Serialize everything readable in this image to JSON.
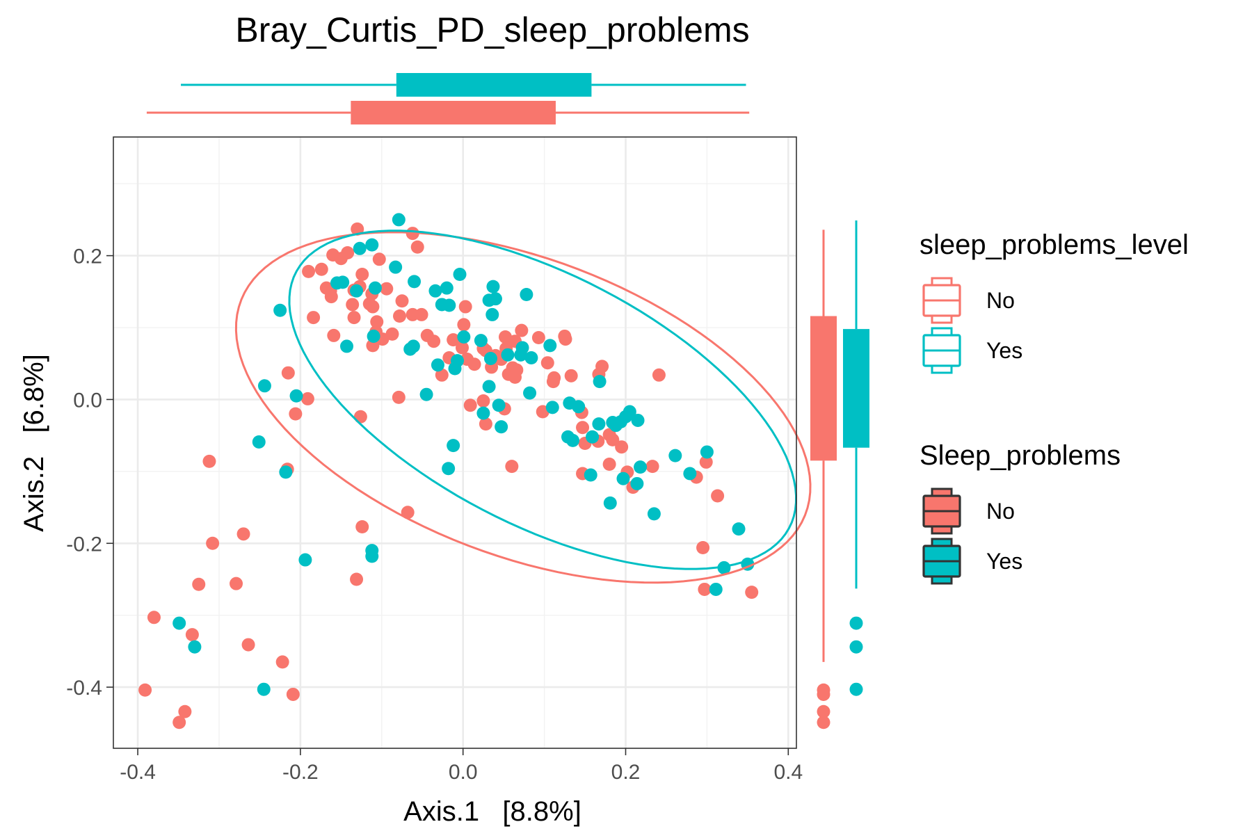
{
  "chart_data": {
    "type": "scatter",
    "title": "Bray_Curtis_PD_sleep_problems",
    "xlabel": "Axis.1   [8.8%]",
    "ylabel": "Axis.2   [6.8%]",
    "xlim": [
      -0.43,
      0.41
    ],
    "ylim": [
      -0.485,
      0.365
    ],
    "grid": true,
    "x_ticks": [
      -0.4,
      -0.2,
      0.0,
      0.2,
      0.4
    ],
    "x_tick_labels": [
      "-0.4",
      "-0.2",
      "0.0",
      "0.2",
      "0.4"
    ],
    "y_ticks": [
      -0.4,
      -0.2,
      0.0,
      0.2
    ],
    "y_tick_labels": [
      "-0.4",
      "-0.2",
      "0.0",
      "0.2"
    ],
    "colors": {
      "No": "#F8766D",
      "Yes": "#00BFC4"
    },
    "legend_position": "right",
    "legends": [
      {
        "title": "sleep_problems_level",
        "style": "outline",
        "items": [
          "No",
          "Yes"
        ]
      },
      {
        "title": "Sleep_problems",
        "style": "filled",
        "items": [
          "No",
          "Yes"
        ]
      }
    ],
    "marginal_boxplots": {
      "x": [
        {
          "group": "Yes",
          "whisker_low": -0.347,
          "q1": -0.082,
          "q3": 0.158,
          "whisker_high": 0.348
        },
        {
          "group": "No",
          "whisker_low": -0.389,
          "q1": -0.138,
          "q3": 0.114,
          "whisker_high": 0.352
        }
      ],
      "y": [
        {
          "group": "No",
          "whisker_low": -0.365,
          "q1": -0.085,
          "q3": 0.116,
          "whisker_high": 0.236,
          "outliers": [
            -0.404,
            -0.41,
            -0.434,
            -0.449
          ]
        },
        {
          "group": "Yes",
          "whisker_low": -0.263,
          "q1": -0.067,
          "q3": 0.098,
          "whisker_high": 0.249,
          "outliers": [
            -0.311,
            -0.344,
            -0.403
          ]
        }
      ]
    },
    "ellipses": [
      {
        "group": "No",
        "center": [
          0.074,
          -0.011
        ],
        "semi_major": 0.378,
        "semi_minor": 0.203,
        "angle_deg": -25
      },
      {
        "group": "Yes",
        "center": [
          0.098,
          -0.0005
        ],
        "semi_major": 0.352,
        "semi_minor": 0.169,
        "angle_deg": -32
      }
    ],
    "series": [
      {
        "name": "No",
        "points": [
          [
            -0.13,
            0.237
          ],
          [
            -0.062,
            0.231
          ],
          [
            -0.056,
            0.212
          ],
          [
            -0.16,
            0.201
          ],
          [
            -0.142,
            0.204
          ],
          [
            -0.15,
            0.196
          ],
          [
            -0.103,
            0.195
          ],
          [
            -0.19,
            0.178
          ],
          [
            -0.174,
            0.181
          ],
          [
            -0.124,
            0.174
          ],
          [
            -0.168,
            0.155
          ],
          [
            -0.163,
            0.151
          ],
          [
            -0.134,
            0.152
          ],
          [
            -0.127,
            0.157
          ],
          [
            -0.094,
            0.154
          ],
          [
            -0.075,
            0.137
          ],
          [
            -0.112,
            0.147
          ],
          [
            -0.162,
            0.143
          ],
          [
            -0.136,
            0.132
          ],
          [
            -0.115,
            0.133
          ],
          [
            -0.111,
            0.129
          ],
          [
            -0.184,
            0.114
          ],
          [
            -0.134,
            0.114
          ],
          [
            -0.106,
            0.108
          ],
          [
            -0.078,
            0.116
          ],
          [
            -0.062,
            0.118
          ],
          [
            -0.051,
            0.118
          ],
          [
            -0.159,
            0.089
          ],
          [
            -0.107,
            0.094
          ],
          [
            -0.099,
            0.084
          ],
          [
            -0.111,
            0.075
          ],
          [
            -0.087,
            0.091
          ],
          [
            -0.044,
            0.089
          ],
          [
            -0.036,
            0.081
          ],
          [
            -0.012,
            0.083
          ],
          [
            0.003,
            0.129
          ],
          [
            0.001,
            0.104
          ],
          [
            0.072,
            0.096
          ],
          [
            -0.001,
            0.072
          ],
          [
            0.025,
            0.071
          ],
          [
            0.052,
            0.087
          ],
          [
            0.064,
            0.081
          ],
          [
            0.093,
            0.086
          ],
          [
            0.125,
            0.088
          ],
          [
            0.126,
            0.084
          ],
          [
            0.053,
            0.071
          ],
          [
            0.04,
            0.061
          ],
          [
            0.047,
            0.056
          ],
          [
            0.005,
            0.056
          ],
          [
            0.028,
            0.068
          ],
          [
            0.035,
            0.045
          ],
          [
            0.104,
            0.051
          ],
          [
            0.061,
            0.044
          ],
          [
            0.171,
            0.046
          ],
          [
            0.056,
            0.035
          ],
          [
            0.064,
            0.031
          ],
          [
            0.066,
            0.041
          ],
          [
            0.112,
            0.03
          ],
          [
            0.133,
            0.033
          ],
          [
            0.167,
            0.035
          ],
          [
            0.111,
            0.025
          ],
          [
            0.241,
            0.034
          ],
          [
            0.014,
            0.049
          ],
          [
            -0.017,
            0.058
          ],
          [
            -0.026,
            0.034
          ],
          [
            -0.215,
            0.037
          ],
          [
            -0.079,
            0.003
          ],
          [
            -0.191,
            0.001
          ],
          [
            -0.206,
            -0.02
          ],
          [
            -0.126,
            -0.024
          ],
          [
            0.009,
            -0.008
          ],
          [
            0.025,
            -0.002
          ],
          [
            0.051,
            -0.013
          ],
          [
            0.098,
            -0.017
          ],
          [
            0.028,
            -0.034
          ],
          [
            0.146,
            -0.018
          ],
          [
            0.147,
            -0.039
          ],
          [
            0.15,
            -0.061
          ],
          [
            0.166,
            -0.058
          ],
          [
            0.18,
            -0.049
          ],
          [
            0.184,
            -0.056
          ],
          [
            0.195,
            -0.066
          ],
          [
            0.18,
            -0.09
          ],
          [
            0.147,
            -0.103
          ],
          [
            0.233,
            -0.093
          ],
          [
            0.287,
            -0.108
          ],
          [
            0.299,
            -0.087
          ],
          [
            0.06,
            -0.093
          ],
          [
            -0.312,
            -0.086
          ],
          [
            -0.216,
            -0.097
          ],
          [
            0.202,
            -0.101
          ],
          [
            0.209,
            -0.122
          ],
          [
            0.313,
            -0.134
          ],
          [
            -0.068,
            -0.157
          ],
          [
            -0.124,
            -0.177
          ],
          [
            -0.27,
            -0.187
          ],
          [
            -0.308,
            -0.2
          ],
          [
            0.295,
            -0.206
          ],
          [
            -0.325,
            -0.257
          ],
          [
            -0.279,
            -0.256
          ],
          [
            -0.131,
            -0.25
          ],
          [
            0.297,
            -0.264
          ],
          [
            0.355,
            -0.268
          ],
          [
            -0.38,
            -0.303
          ],
          [
            -0.333,
            -0.327
          ],
          [
            -0.264,
            -0.341
          ],
          [
            -0.222,
            -0.365
          ],
          [
            -0.209,
            -0.41
          ],
          [
            -0.391,
            -0.404
          ],
          [
            -0.342,
            -0.434
          ],
          [
            -0.349,
            -0.449
          ]
        ]
      },
      {
        "name": "Yes",
        "points": [
          [
            -0.079,
            0.25
          ],
          [
            -0.127,
            0.21
          ],
          [
            -0.112,
            0.215
          ],
          [
            -0.155,
            0.162
          ],
          [
            -0.148,
            0.163
          ],
          [
            -0.131,
            0.151
          ],
          [
            -0.108,
            0.155
          ],
          [
            -0.083,
            0.184
          ],
          [
            -0.06,
            0.164
          ],
          [
            -0.034,
            0.151
          ],
          [
            -0.02,
            0.155
          ],
          [
            -0.004,
            0.174
          ],
          [
            0.037,
            0.157
          ],
          [
            0.04,
            0.14
          ],
          [
            0.032,
            0.138
          ],
          [
            0.078,
            0.146
          ],
          [
            -0.225,
            0.124
          ],
          [
            -0.026,
            0.132
          ],
          [
            -0.017,
            0.131
          ],
          [
            0.036,
            0.118
          ],
          [
            -0.11,
            0.088
          ],
          [
            -0.143,
            0.074
          ],
          [
            -0.061,
            0.074
          ],
          [
            -0.065,
            0.07
          ],
          [
            0.001,
            0.087
          ],
          [
            0.022,
            0.082
          ],
          [
            0.034,
            0.057
          ],
          [
            0.073,
            0.072
          ],
          [
            0.071,
            0.062
          ],
          [
            0.084,
            0.058
          ],
          [
            0.107,
            0.075
          ],
          [
            0.055,
            0.062
          ],
          [
            -0.031,
            0.048
          ],
          [
            -0.007,
            0.054
          ],
          [
            -0.01,
            0.043
          ],
          [
            0.032,
            0.018
          ],
          [
            0.168,
            0.025
          ],
          [
            -0.244,
            0.019
          ],
          [
            -0.205,
            0.005
          ],
          [
            -0.045,
            0.007
          ],
          [
            0.082,
            0.009
          ],
          [
            0.11,
            -0.011
          ],
          [
            0.131,
            -0.005
          ],
          [
            0.142,
            -0.01
          ],
          [
            0.044,
            -0.008
          ],
          [
            0.025,
            -0.019
          ],
          [
            0.047,
            -0.038
          ],
          [
            0.205,
            -0.017
          ],
          [
            0.2,
            -0.024
          ],
          [
            0.194,
            -0.031
          ],
          [
            0.184,
            -0.032
          ],
          [
            0.215,
            -0.029
          ],
          [
            0.167,
            -0.034
          ],
          [
            0.188,
            -0.036
          ],
          [
            0.129,
            -0.052
          ],
          [
            0.135,
            -0.057
          ],
          [
            0.159,
            -0.052
          ],
          [
            -0.251,
            -0.059
          ],
          [
            -0.012,
            -0.064
          ],
          [
            -0.018,
            -0.096
          ],
          [
            -0.218,
            -0.101
          ],
          [
            0.261,
            -0.078
          ],
          [
            0.3,
            -0.073
          ],
          [
            0.218,
            -0.094
          ],
          [
            0.279,
            -0.103
          ],
          [
            0.157,
            -0.105
          ],
          [
            0.197,
            -0.11
          ],
          [
            0.214,
            -0.117
          ],
          [
            0.181,
            -0.144
          ],
          [
            0.235,
            -0.159
          ],
          [
            -0.112,
            -0.21
          ],
          [
            -0.112,
            -0.218
          ],
          [
            0.339,
            -0.18
          ],
          [
            -0.194,
            -0.223
          ],
          [
            0.321,
            -0.234
          ],
          [
            0.35,
            -0.229
          ],
          [
            0.311,
            -0.264
          ],
          [
            -0.349,
            -0.311
          ],
          [
            -0.33,
            -0.344
          ],
          [
            -0.245,
            -0.403
          ]
        ]
      }
    ]
  }
}
